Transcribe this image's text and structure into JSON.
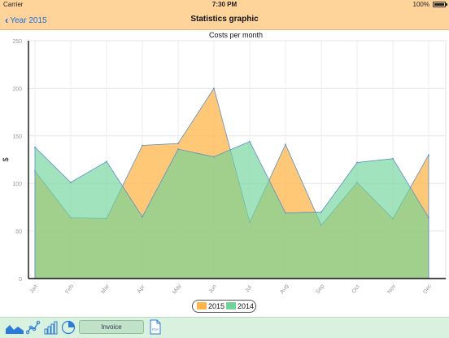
{
  "status_bar": {
    "carrier": "Carrier",
    "time": "7:30 PM",
    "battery": "100%"
  },
  "nav": {
    "back_label": "Year 2015",
    "title": "Statistics graphic"
  },
  "toolbar": {
    "invoice_label": "Invoice",
    "pdf_label": "PDF",
    "icons": [
      "area-chart-icon",
      "line-chart-icon",
      "bar-chart-icon",
      "pie-chart-icon",
      "pdf-icon"
    ]
  },
  "colors": {
    "series_2015": "#ffb54a",
    "series_2014": "#6fd49a",
    "stroke": "#5a8fc8",
    "nav_bg": "#ffd49a",
    "toolbar_bg": "#d9f2df",
    "accent": "#1a6fe0"
  },
  "chart_data": {
    "type": "area",
    "title": "Costs per month",
    "ylabel": "$",
    "xlabel": "",
    "ylim": [
      0,
      250
    ],
    "yticks": [
      0,
      50,
      100,
      150,
      200,
      250
    ],
    "grid": true,
    "legend_position": "bottom-center",
    "categories": [
      "Jan",
      "Feb",
      "Mar",
      "Apr",
      "May",
      "Jun",
      "Jul",
      "Aug",
      "Sep",
      "Oct",
      "Nov",
      "Dec"
    ],
    "series": [
      {
        "name": "2015",
        "color": "#ffb54a",
        "values": [
          113,
          64,
          63,
          140,
          142,
          200,
          59,
          141,
          56,
          101,
          63,
          130
        ]
      },
      {
        "name": "2014",
        "color": "#6fd49a",
        "values": [
          138,
          101,
          123,
          65,
          136,
          128,
          144,
          69,
          70,
          122,
          126,
          64
        ]
      }
    ]
  }
}
